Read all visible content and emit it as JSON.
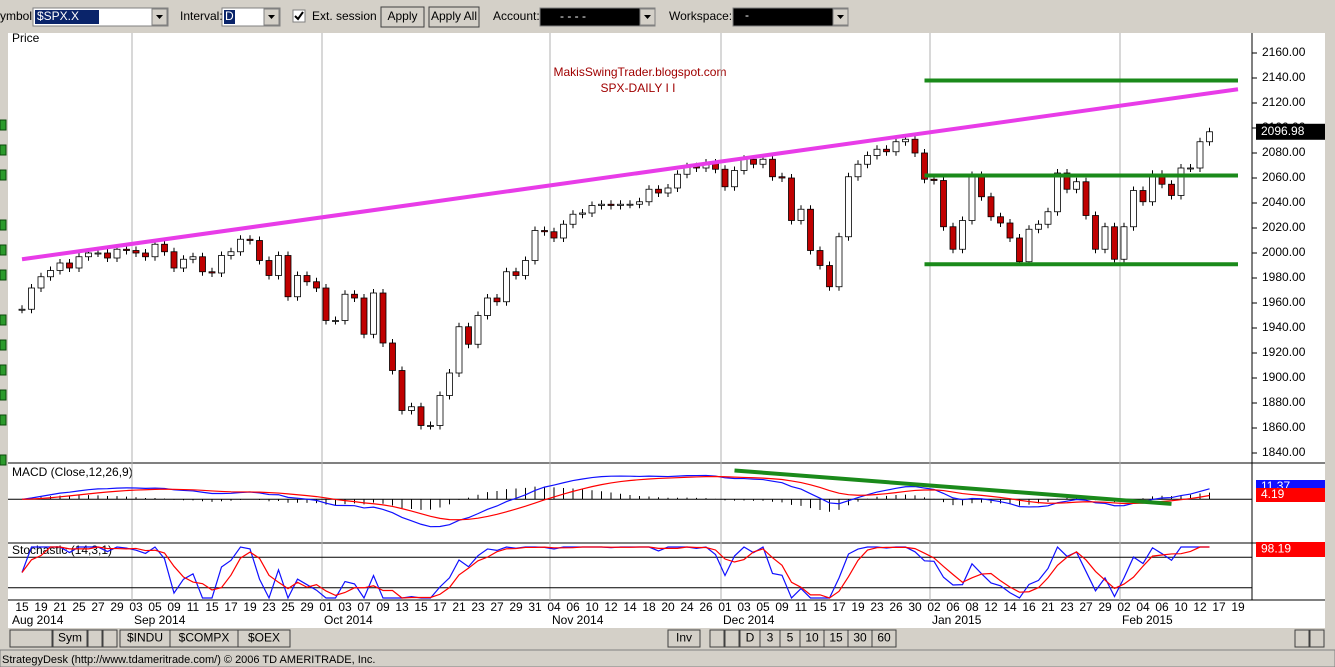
{
  "toolbar": {
    "symbol_label": "ymbol:",
    "symbol": "$SPX.X",
    "interval_label": "Interval:",
    "interval": "D",
    "ext_session": "Ext. session",
    "apply": "Apply",
    "apply_all": "Apply All",
    "account_label": "Account:",
    "account": "-    -    -    -",
    "workspace_label": "Workspace:",
    "workspace": "-"
  },
  "chart_data": {
    "type": "candlestick",
    "panel_label": "Price",
    "watermark": [
      "MakisSwingTrader.blogspot.com",
      "SPX-DAILY    I I"
    ],
    "categories": [
      "15",
      null,
      "19",
      null,
      "21",
      null,
      "25",
      null,
      "27",
      null,
      "29",
      null,
      "03",
      null,
      "05",
      null,
      "09",
      null,
      "11",
      null,
      "15",
      null,
      "17",
      null,
      "19",
      null,
      "23",
      null,
      "25",
      null,
      "29",
      null,
      "01",
      null,
      "03",
      null,
      "07",
      null,
      "09",
      null,
      "13",
      null,
      "15",
      null,
      "17",
      null,
      "21",
      null,
      "23",
      null,
      "27",
      null,
      "29",
      null,
      "31",
      null,
      "04",
      null,
      "06",
      null,
      "10",
      null,
      "12",
      null,
      "14",
      null,
      "18",
      null,
      "20",
      null,
      "24",
      null,
      "26",
      null,
      "01",
      null,
      "03",
      null,
      "05",
      null,
      "09",
      null,
      "11",
      null,
      "15",
      null,
      "17",
      null,
      "19",
      null,
      "23",
      null,
      "26",
      null,
      "30",
      null,
      "02",
      null,
      "06",
      null,
      "08",
      null,
      "12",
      null,
      "14",
      null,
      "16",
      null,
      "21",
      null,
      "23",
      null,
      "27",
      null,
      "29",
      null,
      "02",
      null,
      "04",
      null,
      "06",
      null,
      "10",
      null,
      "12",
      null,
      "17",
      null,
      "19"
    ],
    "months": [
      "Aug 2014",
      "Sep 2014",
      "Oct 2014",
      "Nov 2014",
      "Dec 2014",
      "Jan 2015",
      "Feb 2015"
    ],
    "close": [
      1955,
      1972,
      1981,
      1986,
      1992,
      1988,
      1997,
      2000,
      2000,
      1996,
      2003,
      2002,
      2000,
      1997,
      2007,
      2001,
      1988,
      1995,
      1997,
      1985,
      1984,
      1998,
      2001,
      2011,
      2010,
      1994,
      1982,
      1998,
      1965,
      1982,
      1977,
      1972,
      1946,
      1946,
      1967,
      1964,
      1935,
      1968,
      1928,
      1906,
      1874,
      1877,
      1862,
      1862,
      1886,
      1904,
      1941,
      1927,
      1950,
      1964,
      1961,
      1985,
      1982,
      1994,
      2018,
      2017,
      2012,
      2023,
      2031,
      2032,
      2038,
      2039,
      2038,
      2039,
      2039,
      2041,
      2051,
      2048,
      2052,
      2063,
      2069,
      2068,
      2072,
      2067,
      2053,
      2066,
      2075,
      2071,
      2075,
      2061,
      2060,
      2026,
      2035,
      2002,
      1990,
      1973,
      2013,
      2061,
      2071,
      2078,
      2083,
      2081,
      2089,
      2091,
      2080,
      2059,
      2058,
      2021,
      2003,
      2026,
      2062,
      2045,
      2029,
      2024,
      2012,
      1993,
      2019,
      2023,
      2033,
      2064,
      2051,
      2057,
      2030,
      2003,
      2021,
      1995,
      2021,
      2050,
      2041,
      2063,
      2055,
      2046,
      2068,
      2068,
      2089,
      2096.98,
      null,
      null,
      null
    ],
    "ylim": [
      1832,
      2176
    ],
    "yticks": [
      {
        "value": 1840,
        "label": "1840.00"
      },
      {
        "value": 1860,
        "label": "1860.00"
      },
      {
        "value": 1880,
        "label": "1880.00"
      },
      {
        "value": 1900,
        "label": "1900.00"
      },
      {
        "value": 1920,
        "label": "1920.00"
      },
      {
        "value": 1940,
        "label": "1940.00"
      },
      {
        "value": 1960,
        "label": "1960.00"
      },
      {
        "value": 1980,
        "label": "1980.00"
      },
      {
        "value": 2000,
        "label": "2000.00"
      },
      {
        "value": 2020,
        "label": "2020.00"
      },
      {
        "value": 2040,
        "label": "2040.00"
      },
      {
        "value": 2060,
        "label": "2060.00"
      },
      {
        "value": 2080,
        "label": "2080.00"
      },
      {
        "value": 2100,
        "label": "2100.00"
      },
      {
        "value": 2120,
        "label": "2120.00"
      },
      {
        "value": 2140,
        "label": "2140.00"
      },
      {
        "value": 2160,
        "label": "2160.00"
      }
    ],
    "up_color": "#ffffff",
    "down_color": "#c00000",
    "trendlines": [
      {
        "color": "#e83ce8",
        "x": [
          0,
          128
        ],
        "y": [
          1995,
          2131
        ]
      },
      {
        "color": "#1a8a1a",
        "x": [
          95,
          128
        ],
        "y": [
          2138,
          2138
        ]
      },
      {
        "color": "#1a8a1a",
        "x": [
          95,
          128
        ],
        "y": [
          2062,
          2062
        ]
      },
      {
        "color": "#1a8a1a",
        "x": [
          95,
          128
        ],
        "y": [
          1991,
          1991
        ]
      }
    ]
  },
  "macd": {
    "label": "MACD (Close,12,26,9)",
    "badges": [
      {
        "label": "11.37",
        "color": "#1010ff"
      },
      {
        "label": "4.19",
        "color": "#ff0000"
      }
    ],
    "ylim": [
      -46,
      38
    ],
    "trendline": {
      "color": "#1a8a1a",
      "x": [
        75,
        121
      ],
      "y": [
        31,
        -5
      ]
    }
  },
  "stochastic": {
    "label": "Stochastic (14,3,1)",
    "badge": "98.19",
    "levels": [
      20,
      80
    ],
    "ylim": [
      -4,
      104
    ]
  },
  "tabs": {
    "sym": "Sym",
    "symbols": [
      "$INDU",
      "$COMPX",
      "$OEX"
    ],
    "inv": "Inv",
    "intervals": [
      "D",
      "3",
      "5",
      "10",
      "15",
      "30",
      "60"
    ]
  },
  "status": "StrategyDesk (http://www.tdameritrade.com/) © 2006 TD AMERITRADE, Inc."
}
